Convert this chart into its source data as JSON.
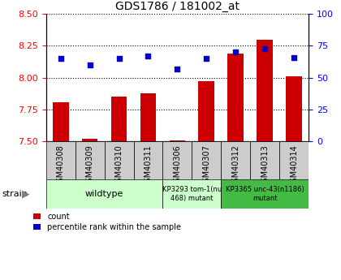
{
  "title": "GDS1786 / 181002_at",
  "samples": [
    "GSM40308",
    "GSM40309",
    "GSM40310",
    "GSM40311",
    "GSM40306",
    "GSM40307",
    "GSM40312",
    "GSM40313",
    "GSM40314"
  ],
  "counts": [
    7.81,
    7.52,
    7.85,
    7.88,
    7.51,
    7.97,
    8.19,
    8.3,
    8.01
  ],
  "percentiles": [
    65,
    60,
    65,
    67,
    57,
    65,
    70,
    73,
    66
  ],
  "ylim_left": [
    7.5,
    8.5
  ],
  "ylim_right": [
    0,
    100
  ],
  "yticks_left": [
    7.5,
    7.75,
    8.0,
    8.25,
    8.5
  ],
  "yticks_right": [
    0,
    25,
    50,
    75,
    100
  ],
  "bar_color": "#cc0000",
  "dot_color": "#0000cc",
  "bg_color": "#ffffff",
  "sample_box_color": "#cccccc",
  "wt_color": "#ccffcc",
  "mutant1_color": "#ccffcc",
  "mutant2_color": "#44bb44"
}
